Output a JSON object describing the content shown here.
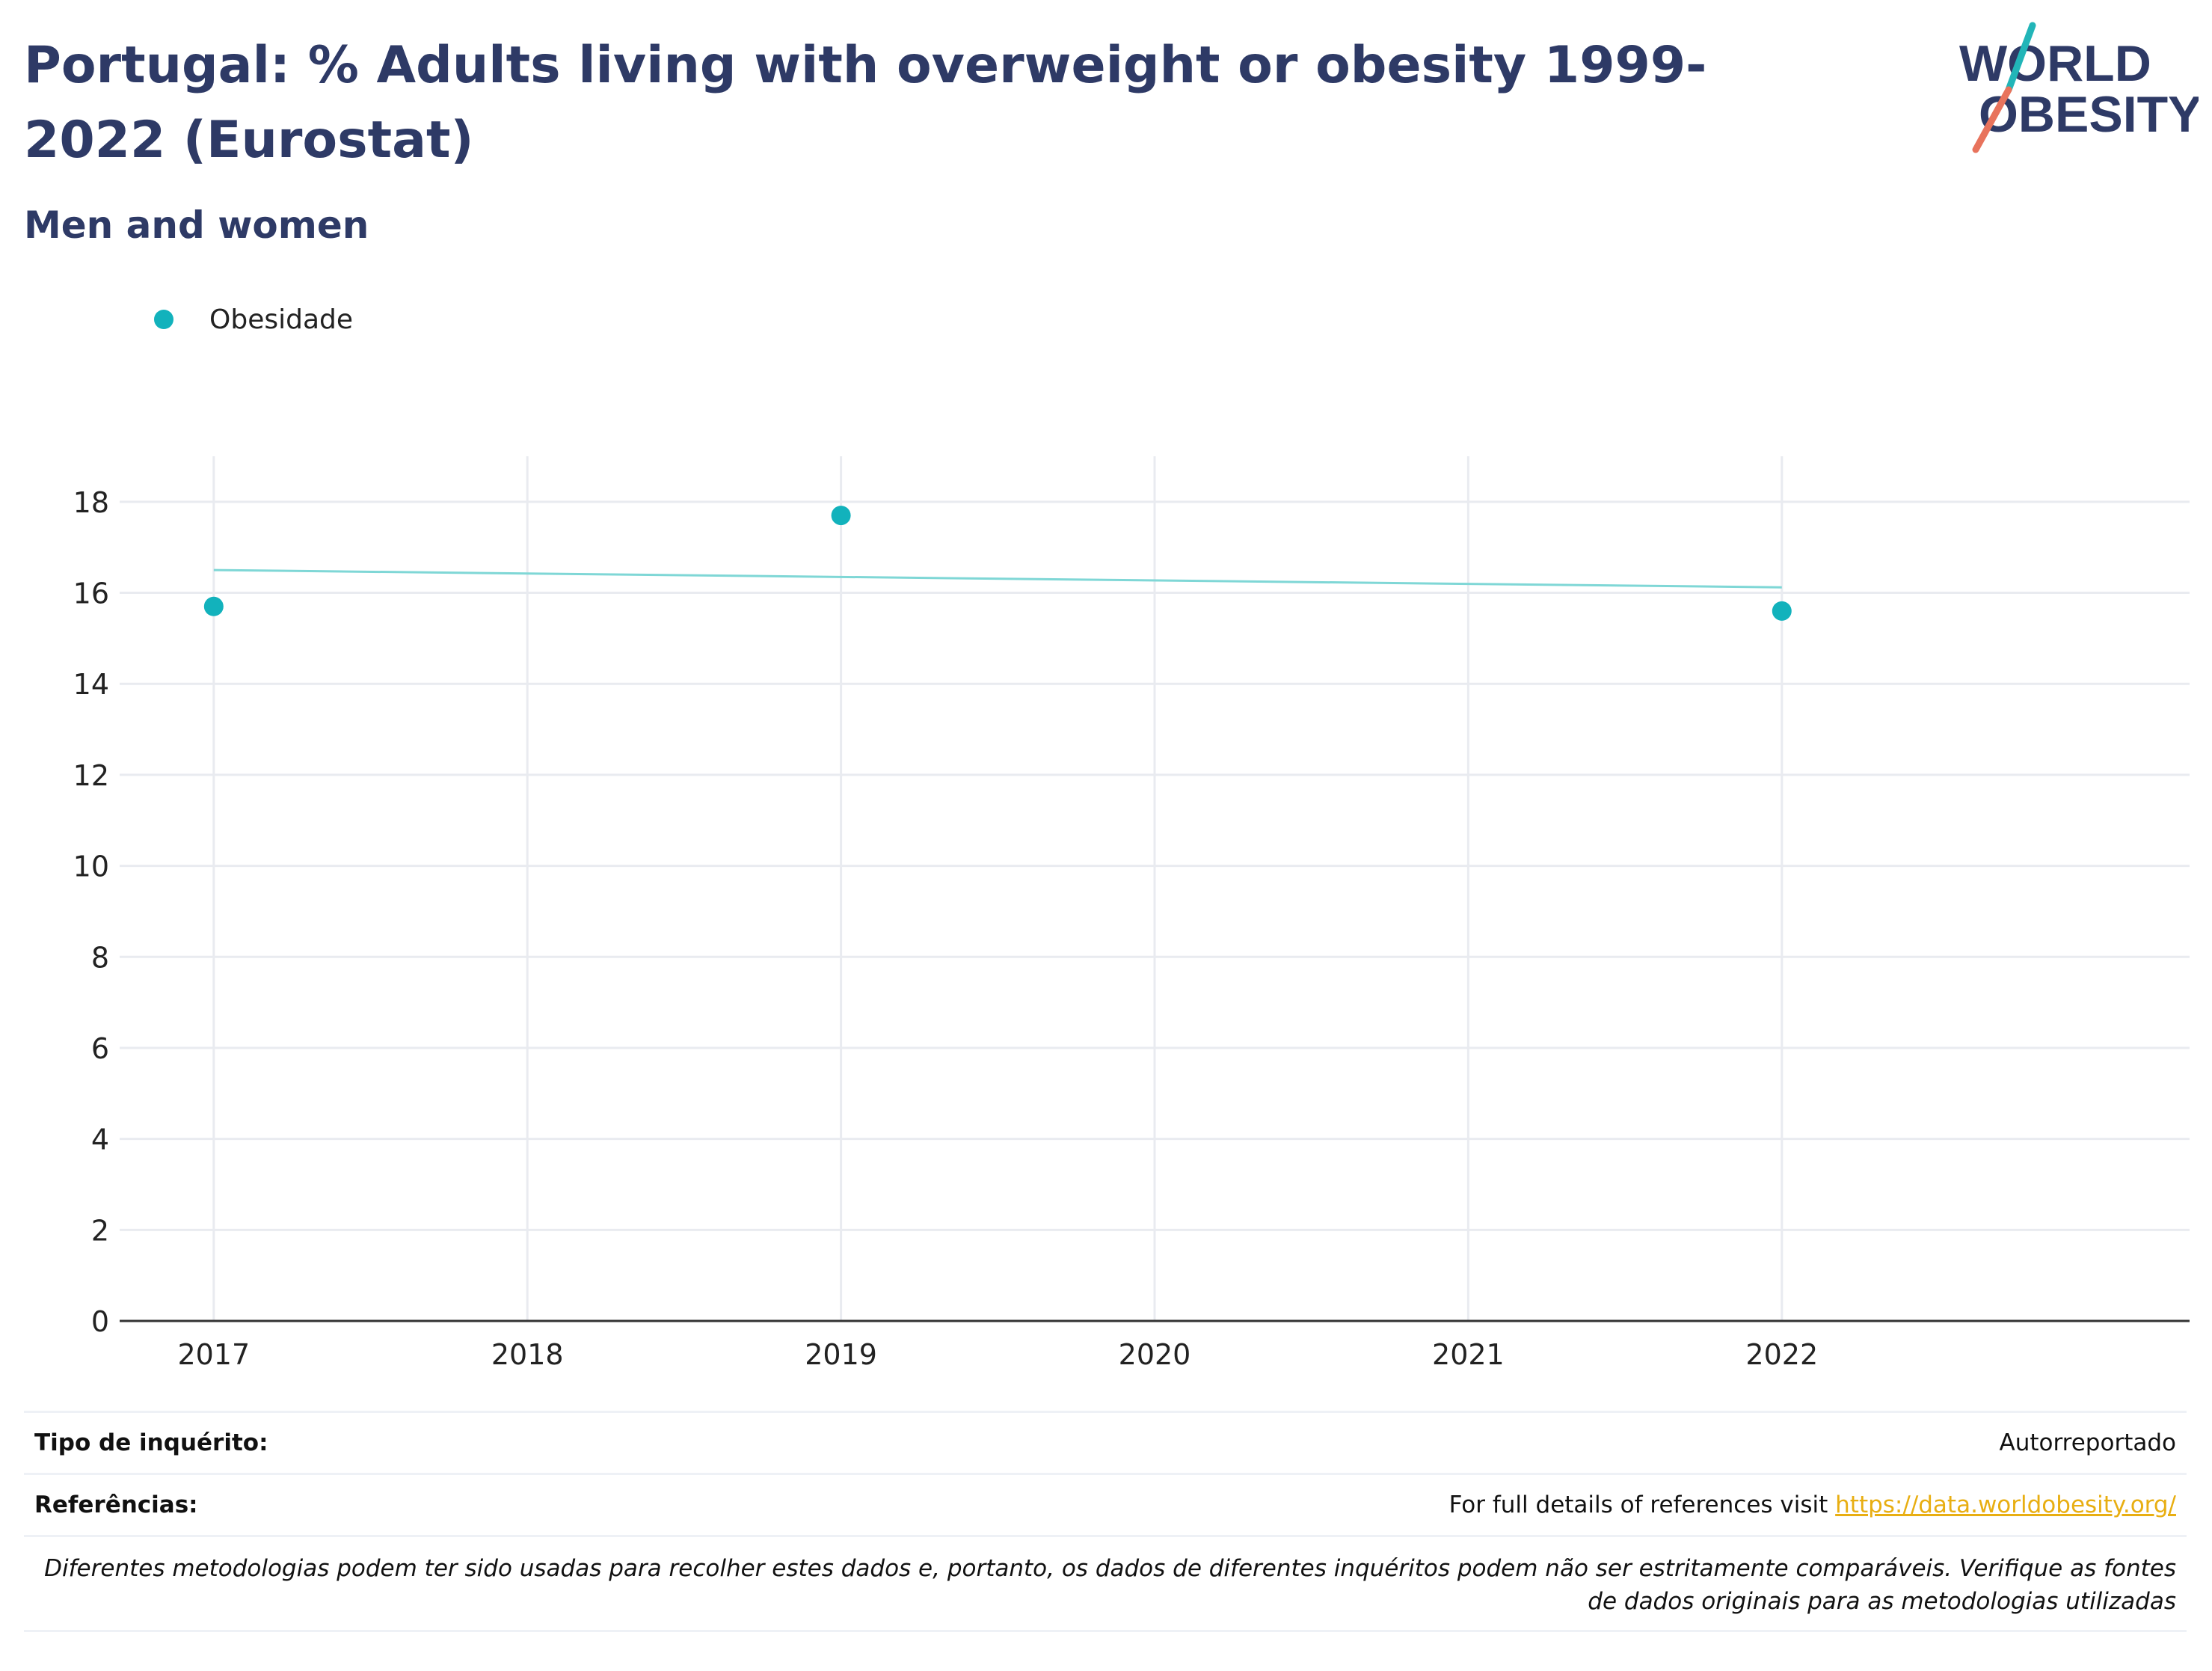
{
  "header": {
    "title": "Portugal: % Adults living with overweight or obesity 1999-2022 (Eurostat)",
    "subtitle": "Men and women"
  },
  "logo": {
    "line1": "WORLD",
    "line2": "OBESITY",
    "colors": {
      "text": "#2e3a66",
      "slash_top": "#22b5b8",
      "slash_bottom": "#e8735c"
    }
  },
  "chart_data": {
    "type": "scatter",
    "legend_position": "top-left",
    "grid": true,
    "xlim": [
      2016.7,
      2023.3
    ],
    "ylim": [
      0,
      19
    ],
    "x_ticks": [
      2017,
      2018,
      2019,
      2020,
      2021,
      2022
    ],
    "y_ticks": [
      0,
      2,
      4,
      6,
      8,
      10,
      12,
      14,
      16,
      18
    ],
    "series": [
      {
        "name": "Obesidade",
        "color": "#12b2bc",
        "points": [
          {
            "x": 2017,
            "y": 15.7
          },
          {
            "x": 2019,
            "y": 17.7
          },
          {
            "x": 2022,
            "y": 15.6
          }
        ],
        "trendline": {
          "color": "#7fd7d6",
          "x": [
            2017,
            2022
          ],
          "y": [
            16.5,
            16.12
          ]
        }
      }
    ]
  },
  "info": {
    "survey_label": "Tipo de inquérito:",
    "survey_value": "Autorreportado",
    "refs_label": "Referências:",
    "refs_text": "For full details of references visit ",
    "refs_link": "https://data.worldobesity.org/",
    "note": "Diferentes metodologias podem ter sido usadas para recolher estes dados e, portanto, os dados de diferentes inquéritos podem não ser estritamente comparáveis. Verifique as fontes de dados originais para as metodologias utilizadas"
  }
}
